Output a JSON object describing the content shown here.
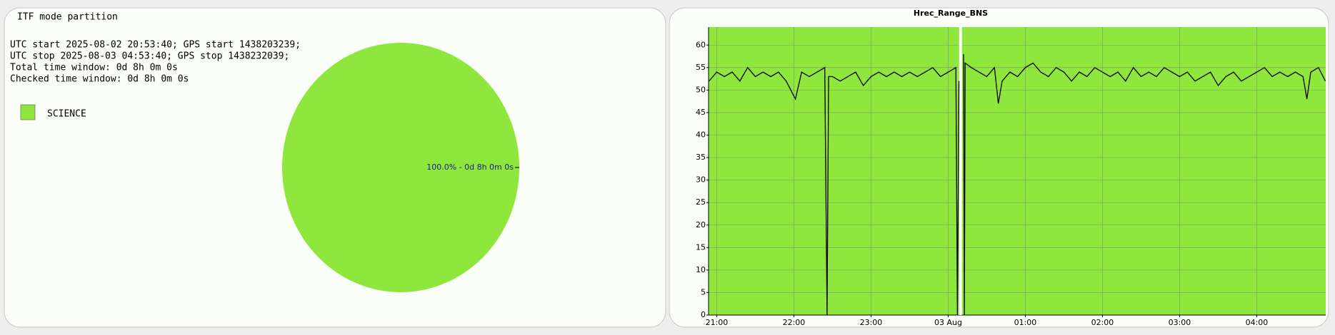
{
  "chart_data": [
    {
      "type": "pie",
      "title": "ITF mode partition",
      "text_lines": [
        "UTC start 2025-08-02 20:53:40; GPS start 1438203239;",
        "UTC stop 2025-08-03 04:53:40; GPS stop 1438232039;",
        "Total time window: 0d 8h 0m 0s",
        "Checked time window: 0d 8h 0m 0s"
      ],
      "categories": [
        "SCIENCE"
      ],
      "values": [
        100
      ],
      "value_labels": [
        "100.0% - 0d 8h 0m 0s"
      ],
      "colors": [
        "#8fe63c"
      ]
    },
    {
      "type": "line",
      "title": "Hrec_Range_BNS",
      "x": [
        20.9,
        21.0,
        21.1,
        21.2,
        21.3,
        21.4,
        21.5,
        21.6,
        21.7,
        21.8,
        21.9,
        22.02,
        22.1,
        22.2,
        22.3,
        22.4,
        22.43,
        22.45,
        22.5,
        22.6,
        22.7,
        22.8,
        22.9,
        23.0,
        23.1,
        23.2,
        23.3,
        23.4,
        23.5,
        23.6,
        23.7,
        23.8,
        23.9,
        24.0,
        24.1,
        24.12,
        24.14,
        24.16,
        24.2,
        24.21,
        24.22,
        24.3,
        24.4,
        24.5,
        24.6,
        24.65,
        24.7,
        24.8,
        24.9,
        25.0,
        25.1,
        25.2,
        25.3,
        25.4,
        25.5,
        25.6,
        25.7,
        25.8,
        25.9,
        26.0,
        26.1,
        26.2,
        26.3,
        26.4,
        26.5,
        26.6,
        26.7,
        26.8,
        26.9,
        27.0,
        27.1,
        27.2,
        27.3,
        27.4,
        27.5,
        27.6,
        27.7,
        27.8,
        27.9,
        28.0,
        28.1,
        28.2,
        28.3,
        28.4,
        28.5,
        28.6,
        28.65,
        28.7,
        28.8,
        28.89
      ],
      "values": [
        52,
        54,
        53,
        54,
        52,
        55,
        53,
        54,
        53,
        54,
        52,
        48,
        54,
        53,
        54,
        55,
        0,
        53,
        53,
        52,
        53,
        54,
        51,
        53,
        54,
        53,
        54,
        53,
        54,
        53,
        54,
        55,
        53,
        54,
        55,
        0,
        52,
        null,
        58,
        0,
        56,
        55,
        54,
        53,
        55,
        47,
        52,
        54,
        53,
        55,
        56,
        54,
        53,
        55,
        54,
        52,
        54,
        53,
        55,
        54,
        53,
        54,
        52,
        55,
        53,
        54,
        53,
        55,
        54,
        53,
        54,
        52,
        53,
        54,
        51,
        53,
        54,
        52,
        53,
        54,
        55,
        53,
        54,
        53,
        54,
        53,
        48,
        54,
        55,
        52
      ],
      "color": "#000000",
      "background": "#8fe63c",
      "grid": true,
      "xlim": [
        20.894,
        28.894
      ],
      "xticks": [
        {
          "value": 21,
          "label": "21:00"
        },
        {
          "value": 22,
          "label": "22:00"
        },
        {
          "value": 23,
          "label": "23:00"
        },
        {
          "value": 24,
          "label": "03 Aug"
        },
        {
          "value": 25,
          "label": "01:00"
        },
        {
          "value": 26,
          "label": "02:00"
        },
        {
          "value": 27,
          "label": "03:00"
        },
        {
          "value": 28,
          "label": "04:00"
        }
      ],
      "ylim": [
        0,
        64
      ],
      "yticks": [
        0,
        5,
        10,
        15,
        20,
        25,
        30,
        35,
        40,
        45,
        50,
        55,
        60
      ]
    }
  ]
}
